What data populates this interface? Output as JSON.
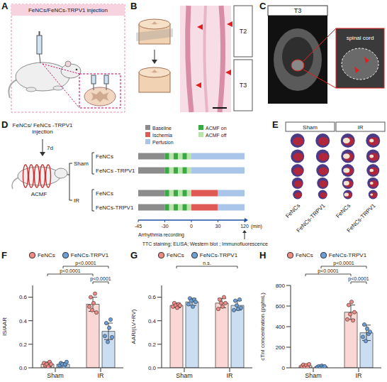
{
  "panels": {
    "A": {
      "letter": "A",
      "title": "FeNCs/FeNCs-TRPV1 injection"
    },
    "B": {
      "letter": "B",
      "levels": [
        "T2",
        "T3"
      ]
    },
    "C": {
      "letter": "C",
      "label": "T3",
      "inset_label": "spinal cord"
    },
    "D": {
      "letter": "D",
      "injection": "FeNCs/ FeNCs -TRPV1 injection",
      "interval": "7d",
      "device": "ACMF",
      "phases": [
        {
          "name": "Baseline",
          "color": "#8c8c8c"
        },
        {
          "name": "Ischemia",
          "color": "#e05a55"
        },
        {
          "name": "Perfusion",
          "color": "#a9c6ea"
        },
        {
          "name": "ACMF on",
          "color": "#3aa845"
        },
        {
          "name": "ACMF off",
          "color": "#b9e4a9"
        }
      ],
      "groups": [
        {
          "name": "Sham",
          "rows": [
            "FeNCs",
            "FeNCs -TRPV1"
          ],
          "segments": [
            {
              "phase": "Baseline",
              "start": -45,
              "end": -30
            },
            {
              "phase": "ACMF on",
              "start": -30,
              "end": -25
            },
            {
              "phase": "ACMF off",
              "start": -25,
              "end": -20
            },
            {
              "phase": "ACMF on",
              "start": -20,
              "end": -15
            },
            {
              "phase": "ACMF off",
              "start": -15,
              "end": -10
            },
            {
              "phase": "ACMF on",
              "start": -10,
              "end": -5
            },
            {
              "phase": "ACMF off",
              "start": -5,
              "end": 0
            },
            {
              "phase": "Perfusion",
              "start": 0,
              "end": 120
            }
          ]
        },
        {
          "name": "IR",
          "rows": [
            "FeNCs",
            "FeNCs-TRPV1"
          ],
          "segments": [
            {
              "phase": "Baseline",
              "start": -45,
              "end": -30
            },
            {
              "phase": "ACMF on",
              "start": -30,
              "end": -25
            },
            {
              "phase": "ACMF off",
              "start": -25,
              "end": -20
            },
            {
              "phase": "ACMF on",
              "start": -20,
              "end": -15
            },
            {
              "phase": "ACMF off",
              "start": -15,
              "end": -10
            },
            {
              "phase": "ACMF on",
              "start": -10,
              "end": -5
            },
            {
              "phase": "ACMF off",
              "start": -5,
              "end": 0
            },
            {
              "phase": "Ischemia",
              "start": 0,
              "end": 30
            },
            {
              "phase": "Perfusion",
              "start": 30,
              "end": 120
            }
          ]
        }
      ],
      "xlim": [
        -45,
        120
      ],
      "xticks": [
        -45,
        -30,
        0,
        30,
        120
      ],
      "unit": "(min)",
      "recording": "Arrhythmia recording",
      "endpoints": "TTC staining; ELISA; Western blot ; Immunofluorescence"
    },
    "E": {
      "letter": "E",
      "groups": [
        {
          "name": "Sham",
          "columns": [
            "FeNCs",
            "FeNCs-TRPV1"
          ]
        },
        {
          "name": "IR",
          "columns": [
            "FeNCs",
            "FeNCs-TRPV1"
          ]
        }
      ]
    }
  },
  "chart_data": [
    {
      "letter": "F",
      "type": "bar",
      "categories": [
        "Sham",
        "IR"
      ],
      "y_label": "IS/AAR",
      "ylim": [
        0,
        0.7
      ],
      "yticks": [
        {
          "value": 0,
          "label": "0.0"
        },
        {
          "value": 0.2,
          "label": "0.2"
        },
        {
          "value": 0.4,
          "label": "0.4"
        },
        {
          "value": 0.6,
          "label": "0.6"
        }
      ],
      "legend": "top",
      "series": [
        {
          "name": "FeNCs",
          "color": "#f08a84",
          "values": [
            0.03,
            0.54
          ],
          "errors": [
            0.02,
            0.06
          ],
          "points": [
            [
              0.04,
              0.02,
              0.03,
              0.01,
              0.05,
              0.03
            ],
            [
              0.52,
              0.6,
              0.49,
              0.55,
              0.63,
              0.47
            ]
          ]
        },
        {
          "name": "FeNCs-TRPV1",
          "color": "#6a9fd8",
          "values": [
            0.03,
            0.31
          ],
          "errors": [
            0.015,
            0.07
          ],
          "points": [
            [
              0.02,
              0.04,
              0.03,
              0.01,
              0.03,
              0.05
            ],
            [
              0.27,
              0.38,
              0.22,
              0.34,
              0.41,
              0.26
            ]
          ]
        }
      ],
      "annotations": [
        {
          "label": "p<0.0001",
          "from": {
            "category": "Sham",
            "series": "FeNCs-TRPV1"
          },
          "to": {
            "category": "IR",
            "series": "FeNCs-TRPV1"
          }
        },
        {
          "label": "p<0.0001",
          "from": {
            "category": "Sham",
            "series": "FeNCs"
          },
          "to": {
            "category": "IR",
            "series": "FeNCs"
          }
        },
        {
          "label": "p<0.0001",
          "from": {
            "category": "IR",
            "series": "FeNCs"
          },
          "to": {
            "category": "IR",
            "series": "FeNCs-TRPV1"
          }
        }
      ]
    },
    {
      "letter": "G",
      "type": "bar",
      "categories": [
        "Sham",
        "IR"
      ],
      "y_label": "AAR/(LV+RV)",
      "ylim": [
        0,
        0.7
      ],
      "yticks": [
        {
          "value": 0,
          "label": "0.0"
        },
        {
          "value": 0.2,
          "label": "0.2"
        },
        {
          "value": 0.4,
          "label": "0.4"
        },
        {
          "value": 0.6,
          "label": "0.6"
        }
      ],
      "legend": "top",
      "series": [
        {
          "name": "FeNCs",
          "color": "#f08a84",
          "values": [
            0.53,
            0.55
          ],
          "errors": [
            0.02,
            0.04
          ],
          "points": [
            [
              0.52,
              0.55,
              0.53,
              0.51,
              0.54,
              0.53
            ],
            [
              0.5,
              0.58,
              0.55,
              0.52,
              0.6,
              0.55
            ]
          ]
        },
        {
          "name": "FeNCs-TRPV1",
          "color": "#6a9fd8",
          "values": [
            0.56,
            0.53
          ],
          "errors": [
            0.03,
            0.04
          ],
          "points": [
            [
              0.54,
              0.59,
              0.57,
              0.52,
              0.58,
              0.56
            ],
            [
              0.49,
              0.57,
              0.53,
              0.5,
              0.58,
              0.51
            ]
          ]
        }
      ],
      "annotations": [
        {
          "label": "n.s.",
          "from": {
            "category": "Sham",
            "series": "FeNCs"
          },
          "to": {
            "category": "IR",
            "series": "FeNCs-TRPV1"
          }
        }
      ]
    },
    {
      "letter": "H",
      "type": "bar",
      "categories": [
        "Sham",
        "IR"
      ],
      "y_label": "cTnI concentration (pg/mL)",
      "ylim": [
        0,
        800
      ],
      "yticks": [
        0,
        200,
        400,
        600,
        800
      ],
      "legend": "top",
      "series": [
        {
          "name": "FeNCs",
          "color": "#f08a84",
          "values": [
            20,
            540
          ],
          "errors": [
            12,
            70
          ],
          "points": [
            [
              15,
              30,
              10,
              25,
              5,
              35
            ],
            [
              470,
              610,
              520,
              640,
              460,
              540
            ]
          ]
        },
        {
          "name": "FeNCs-TRPV1",
          "color": "#6a9fd8",
          "values": [
            12,
            340
          ],
          "errors": [
            8,
            75
          ],
          "points": [
            [
              8,
              15,
              5,
              20,
              10,
              14
            ],
            [
              300,
              420,
              260,
              380,
              330,
              350
            ]
          ]
        }
      ],
      "annotations": [
        {
          "label": "p<0.0001",
          "from": {
            "category": "Sham",
            "series": "FeNCs-TRPV1"
          },
          "to": {
            "category": "IR",
            "series": "FeNCs-TRPV1"
          }
        },
        {
          "label": "p<0.0001",
          "from": {
            "category": "Sham",
            "series": "FeNCs"
          },
          "to": {
            "category": "IR",
            "series": "FeNCs"
          }
        },
        {
          "label": "p<0.0001",
          "from": {
            "category": "IR",
            "series": "FeNCs"
          },
          "to": {
            "category": "IR",
            "series": "FeNCs-TRPV1"
          }
        }
      ]
    }
  ]
}
